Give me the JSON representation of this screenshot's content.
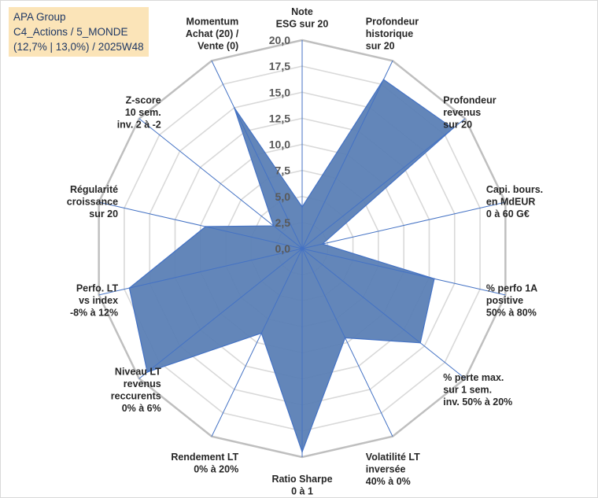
{
  "info_box": {
    "line1": "APA Group",
    "line2": "C4_Actions / 5_MONDE",
    "line3": "(12,7% | 13,0%) / 2025W48"
  },
  "colors": {
    "fill": "#5b7fb5",
    "line": "#4472c4",
    "grid": "#d9d9d9",
    "outer_ring": "#bfbfbf",
    "info_bg": "#fbe4b8",
    "info_text": "#1f3864"
  },
  "chart_data": {
    "type": "radar",
    "title": "",
    "rmin": 0,
    "rmax": 20,
    "tick_step": 2.5,
    "tick_labels": [
      "0,0",
      "2,5",
      "5,0",
      "7,5",
      "10,0",
      "12,5",
      "15,0",
      "17,5",
      "20,0"
    ],
    "axes": [
      {
        "label": [
          "Note",
          "ESG sur 20"
        ],
        "value": 4.0
      },
      {
        "label": [
          "Profondeur",
          "historique",
          "sur 20"
        ],
        "value": 18.0
      },
      {
        "label": [
          "Profondeur",
          "revenus",
          "sur 20"
        ],
        "value": 18.5
      },
      {
        "label": [
          "Capi. bours.",
          "en MdEUR",
          "0 à 60 G€"
        ],
        "value": 2.0
      },
      {
        "label": [
          "% perfo 1A",
          "positive",
          "50% à 80%"
        ],
        "value": 13.0
      },
      {
        "label": [
          "% perte max.",
          "sur 1 sem.",
          "inv. 50% à 20%"
        ],
        "value": 14.5
      },
      {
        "label": [
          "Volatilité LT",
          "inversée",
          "40% à 0%"
        ],
        "value": 9.5
      },
      {
        "label": [
          "Ratio Sharpe",
          "0 à 1"
        ],
        "value": 19.5
      },
      {
        "label": [
          "Rendement LT",
          "0% à 20%"
        ],
        "value": 9.0
      },
      {
        "label": [
          "Niveau LT",
          "revenus",
          "reccurents",
          "0% à 6%"
        ],
        "value": 19.0
      },
      {
        "label": [
          "Perfo. LT",
          "vs index",
          "-8% à 12%"
        ],
        "value": 17.0
      },
      {
        "label": [
          "Régularité",
          "croissance",
          "sur 20"
        ],
        "value": 9.5
      },
      {
        "label": [
          "Z-score",
          "10 sem.",
          "inv. 2 à -2"
        ],
        "value": 3.5
      },
      {
        "label": [
          "Momentum",
          "Achat (20) /",
          "Vente (0)"
        ],
        "value": 15.0
      }
    ]
  }
}
